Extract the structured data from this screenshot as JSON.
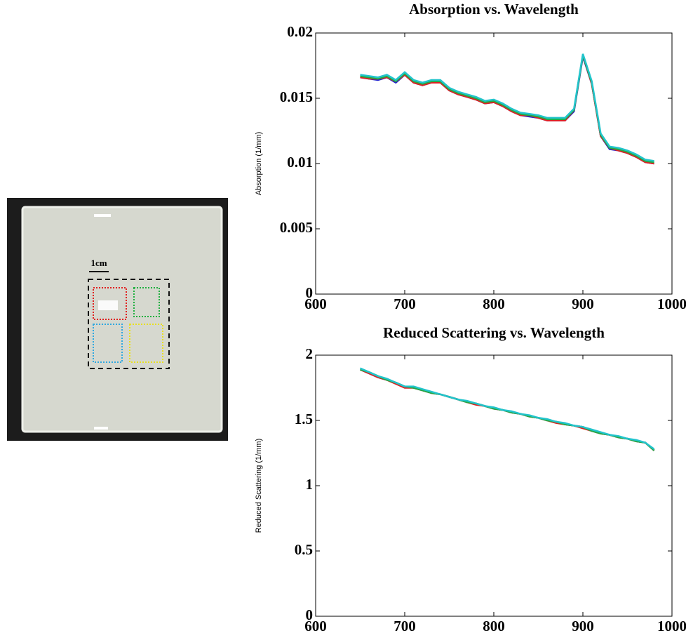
{
  "photo": {
    "scale_label": "1cm"
  },
  "chart_data": [
    {
      "type": "line",
      "title": "Absorption vs. Wavelength",
      "y_label": "Absorption (1/mm)",
      "x": [
        650,
        660,
        670,
        680,
        690,
        700,
        710,
        720,
        730,
        740,
        750,
        760,
        770,
        780,
        790,
        800,
        810,
        820,
        830,
        840,
        850,
        860,
        870,
        880,
        890,
        900,
        910,
        920,
        930,
        940,
        950,
        960,
        970,
        980
      ],
      "xlim": [
        600,
        1000
      ],
      "xticks": [
        600,
        700,
        800,
        900,
        1000
      ],
      "ylim": [
        0,
        0.02
      ],
      "yticks": [
        0,
        0.005,
        0.01,
        0.015,
        0.02
      ],
      "series": [
        {
          "color": "#2222cc",
          "values": [
            0.0166,
            0.0165,
            0.0164,
            0.0166,
            0.0162,
            0.0168,
            0.0162,
            0.016,
            0.0162,
            0.0162,
            0.0156,
            0.0153,
            0.0151,
            0.0149,
            0.0146,
            0.0147,
            0.0144,
            0.014,
            0.0137,
            0.0136,
            0.0135,
            0.0133,
            0.0133,
            0.0133,
            0.014,
            0.0182,
            0.0161,
            0.0121,
            0.0111,
            0.011,
            0.0108,
            0.0105,
            0.0101,
            0.01
          ]
        },
        {
          "color": "#dd2222",
          "values": [
            0.0166,
            0.0165,
            0.0165,
            0.0166,
            0.0163,
            0.0168,
            0.0162,
            0.016,
            0.0162,
            0.0162,
            0.0156,
            0.0153,
            0.0151,
            0.0149,
            0.0146,
            0.0147,
            0.0144,
            0.014,
            0.0137,
            0.0137,
            0.0135,
            0.0133,
            0.0133,
            0.0133,
            0.0141,
            0.0183,
            0.0161,
            0.0121,
            0.0112,
            0.011,
            0.0108,
            0.0105,
            0.0101,
            0.01
          ]
        },
        {
          "color": "#22aa44",
          "values": [
            0.0167,
            0.0166,
            0.0165,
            0.0167,
            0.0163,
            0.0169,
            0.0163,
            0.0161,
            0.0163,
            0.0163,
            0.0157,
            0.0154,
            0.0152,
            0.015,
            0.0147,
            0.0148,
            0.0145,
            0.0141,
            0.0138,
            0.0137,
            0.0136,
            0.0134,
            0.0134,
            0.0134,
            0.0141,
            0.0183,
            0.0162,
            0.0122,
            0.0112,
            0.0111,
            0.0109,
            0.0106,
            0.0102,
            0.0101
          ]
        },
        {
          "color": "#22c4cc",
          "values": [
            0.0168,
            0.0167,
            0.0166,
            0.0168,
            0.0164,
            0.017,
            0.0164,
            0.0162,
            0.0164,
            0.0164,
            0.0158,
            0.0155,
            0.0153,
            0.0151,
            0.0148,
            0.0149,
            0.0146,
            0.0142,
            0.0139,
            0.0138,
            0.0137,
            0.0135,
            0.0135,
            0.0135,
            0.0142,
            0.0184,
            0.0163,
            0.0123,
            0.0113,
            0.0112,
            0.011,
            0.0107,
            0.0103,
            0.0102
          ]
        }
      ]
    },
    {
      "type": "line",
      "title": "Reduced Scattering vs. Wavelength",
      "y_label": "Reduced Scattering (1/mm)",
      "x": [
        650,
        660,
        670,
        680,
        690,
        700,
        710,
        720,
        730,
        740,
        750,
        760,
        770,
        780,
        790,
        800,
        810,
        820,
        830,
        840,
        850,
        860,
        870,
        880,
        890,
        900,
        910,
        920,
        930,
        940,
        950,
        960,
        970,
        980
      ],
      "xlim": [
        600,
        1000
      ],
      "xticks": [
        600,
        700,
        800,
        900,
        1000
      ],
      "ylim": [
        0,
        2
      ],
      "yticks": [
        0,
        0.5,
        1,
        1.5,
        2
      ],
      "series": [
        {
          "color": "#2222cc",
          "values": [
            1.89,
            1.86,
            1.83,
            1.81,
            1.79,
            1.76,
            1.75,
            1.73,
            1.71,
            1.7,
            1.68,
            1.66,
            1.64,
            1.63,
            1.61,
            1.59,
            1.58,
            1.56,
            1.55,
            1.53,
            1.52,
            1.5,
            1.49,
            1.47,
            1.46,
            1.45,
            1.42,
            1.4,
            1.39,
            1.37,
            1.36,
            1.34,
            1.33,
            1.27
          ]
        },
        {
          "color": "#dd2222",
          "values": [
            1.89,
            1.86,
            1.83,
            1.81,
            1.78,
            1.75,
            1.75,
            1.73,
            1.71,
            1.7,
            1.68,
            1.66,
            1.64,
            1.62,
            1.61,
            1.59,
            1.58,
            1.56,
            1.55,
            1.53,
            1.52,
            1.5,
            1.48,
            1.47,
            1.46,
            1.44,
            1.42,
            1.4,
            1.39,
            1.37,
            1.36,
            1.34,
            1.33,
            1.27
          ]
        },
        {
          "color": "#22aa44",
          "values": [
            1.89,
            1.87,
            1.84,
            1.81,
            1.79,
            1.76,
            1.75,
            1.73,
            1.71,
            1.7,
            1.68,
            1.66,
            1.64,
            1.63,
            1.61,
            1.59,
            1.58,
            1.56,
            1.55,
            1.53,
            1.52,
            1.5,
            1.49,
            1.47,
            1.46,
            1.45,
            1.42,
            1.4,
            1.39,
            1.37,
            1.36,
            1.34,
            1.33,
            1.27
          ]
        },
        {
          "color": "#22c4cc",
          "values": [
            1.9,
            1.87,
            1.84,
            1.82,
            1.79,
            1.76,
            1.76,
            1.74,
            1.72,
            1.7,
            1.68,
            1.66,
            1.65,
            1.63,
            1.61,
            1.6,
            1.58,
            1.57,
            1.55,
            1.54,
            1.52,
            1.51,
            1.49,
            1.48,
            1.46,
            1.45,
            1.43,
            1.41,
            1.39,
            1.38,
            1.36,
            1.35,
            1.33,
            1.28
          ]
        }
      ]
    }
  ]
}
